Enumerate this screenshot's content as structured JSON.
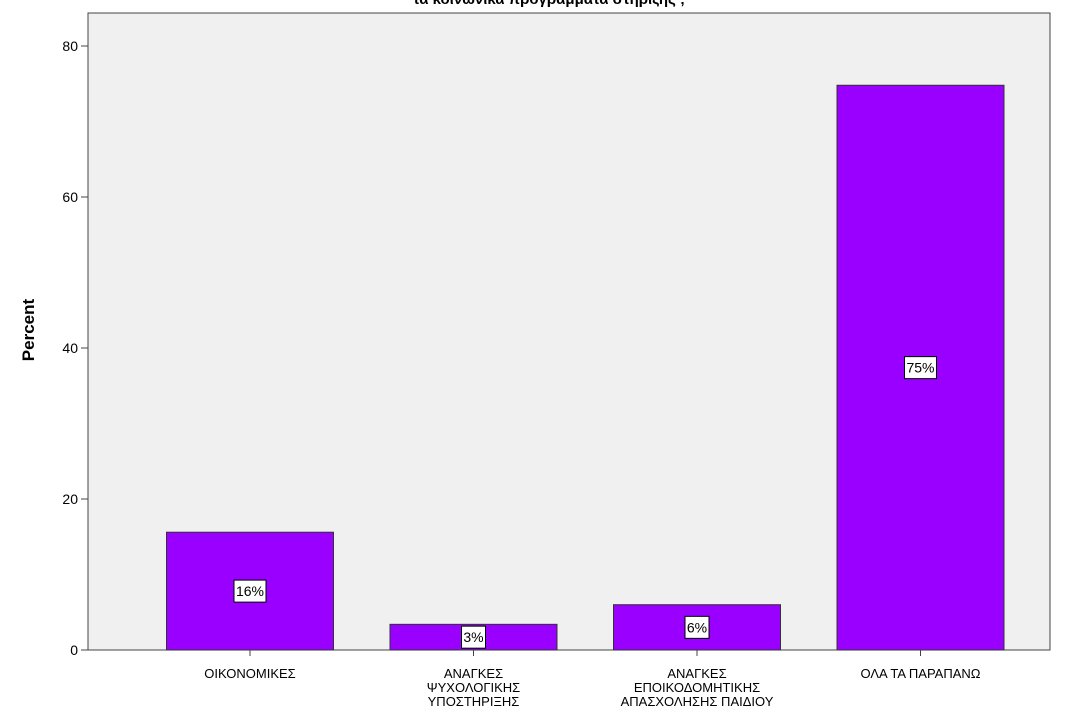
{
  "chart_data": {
    "type": "bar",
    "title": "τα κοινωνικά προγράμματα στήριξης ;",
    "ylabel": "Percent",
    "xlabel": "",
    "ylim": [
      0,
      80
    ],
    "yticks": [
      0,
      20,
      40,
      60,
      80
    ],
    "categories": [
      [
        "ΟΙΚΟΝΟΜΙΚΕΣ"
      ],
      [
        "ΑΝΑΓΚΕΣ",
        "ΨΥΧΟΛΟΓΙΚΗΣ",
        "ΥΠΟΣΤΗΡΙΞΗΣ"
      ],
      [
        "ΑΝΑΓΚΕΣ",
        "ΕΠΟΙΚΟΔΟΜΗΤΙΚΗΣ",
        "ΑΠΑΣΧΟΛΗΣΗΣ ΠΑΙΔΙΟΥ"
      ],
      [
        "ΟΛΑ ΤΑ ΠΑΡΑΠΑΝΩ"
      ]
    ],
    "values": [
      15.6,
      3.4,
      6.0,
      74.8
    ],
    "data_labels": [
      "16%",
      "3%",
      "6%",
      "75%"
    ],
    "bar_color": "#9900FF",
    "plot_background": "#F0F0F0",
    "grid": false,
    "legend": "none"
  }
}
